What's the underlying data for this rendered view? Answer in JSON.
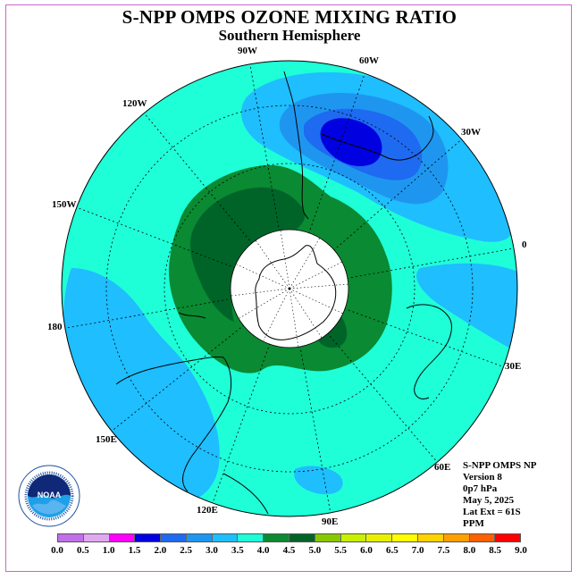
{
  "title": "S-NPP OMPS OZONE MIXING RATIO",
  "subtitle": "Southern Hemisphere",
  "longitude_labels": [
    "90W",
    "60W",
    "30W",
    "0",
    "30E",
    "60E",
    "90E",
    "120E",
    "150E",
    "180",
    "150W",
    "120W"
  ],
  "info": {
    "line1": "S-NPP OMPS NP",
    "line2": "Version 8",
    "line3": "0p7 hPa",
    "line4": "May 5, 2025",
    "line5": "Lat Ext = 61S",
    "line6": "PPM"
  },
  "logo_text": "NOAA",
  "colorbar": {
    "ticks": [
      "0.0",
      "0.5",
      "1.0",
      "1.5",
      "2.0",
      "2.5",
      "3.0",
      "3.5",
      "4.0",
      "4.5",
      "5.0",
      "5.5",
      "6.0",
      "6.5",
      "7.0",
      "7.5",
      "8.0",
      "8.5",
      "9.0"
    ],
    "colors": [
      "#c070e8",
      "#e0a8f0",
      "#ff00ff",
      "#0000e0",
      "#1e6af0",
      "#1e96f0",
      "#1ebeff",
      "#1effd8",
      "#0a8a32",
      "#006428",
      "#88c800",
      "#c8f000",
      "#e8f000",
      "#ffff00",
      "#ffd200",
      "#ffa000",
      "#ff6000",
      "#ff0000",
      "#8c5a3c"
    ]
  },
  "colors": {
    "frame": "#cc66cc",
    "background_field": "#1effd8",
    "light_blue": "#1ebeff",
    "mid_blue": "#1e96f0",
    "deep_blue": "#0000e0",
    "green": "#0a8a32",
    "dark_green": "#006428",
    "pole_disk": "#ffffff"
  }
}
